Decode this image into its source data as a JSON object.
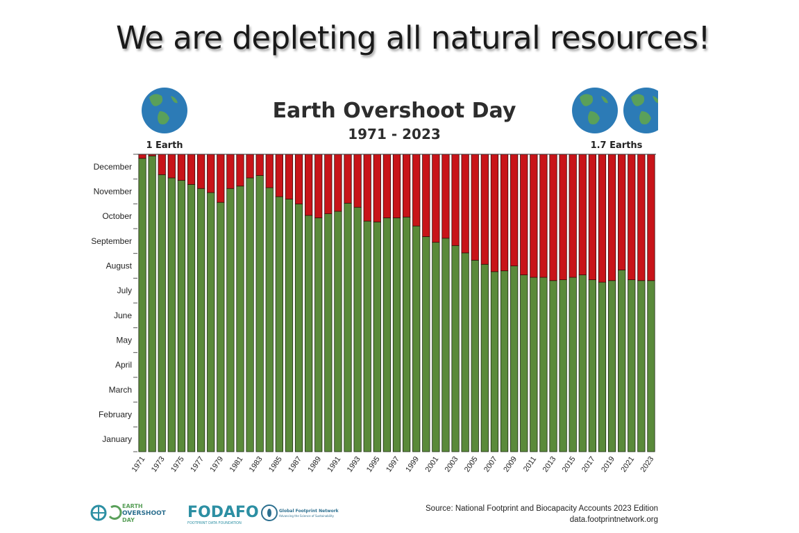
{
  "slide": {
    "title": "We are depleting all natural resources!"
  },
  "chart_data": {
    "type": "bar",
    "stacked": true,
    "title": "Earth Overshoot Day",
    "subtitle": "1971 - 2023",
    "left_note": "1 Earth",
    "right_note": "1.7 Earths",
    "y_ticks": [
      "January",
      "February",
      "March",
      "April",
      "May",
      "June",
      "July",
      "August",
      "September",
      "October",
      "November",
      "December"
    ],
    "ylim": [
      0,
      365
    ],
    "x_tick_labels": [
      "1971",
      "1973",
      "1975",
      "1977",
      "1979",
      "1981",
      "1983",
      "1985",
      "1987",
      "1989",
      "1991",
      "1993",
      "1995",
      "1997",
      "1999",
      "2001",
      "2003",
      "2005",
      "2007",
      "2009",
      "2011",
      "2013",
      "2015",
      "2017",
      "2019",
      "2021",
      "2023"
    ],
    "x": [
      1971,
      1972,
      1973,
      1974,
      1975,
      1976,
      1977,
      1978,
      1979,
      1980,
      1981,
      1982,
      1983,
      1984,
      1985,
      1986,
      1987,
      1988,
      1989,
      1990,
      1991,
      1992,
      1993,
      1994,
      1995,
      1996,
      1997,
      1998,
      1999,
      2000,
      2001,
      2002,
      2003,
      2004,
      2005,
      2006,
      2007,
      2008,
      2009,
      2010,
      2011,
      2012,
      2013,
      2014,
      2015,
      2016,
      2017,
      2018,
      2019,
      2020,
      2021,
      2022,
      2023
    ],
    "series": [
      {
        "name": "",
        "color": "#5a8a3a",
        "values": [
          360,
          363,
          340,
          336,
          333,
          328,
          323,
          318,
          306,
          323,
          326,
          336,
          339,
          324,
          313,
          310,
          304,
          290,
          287,
          292,
          295,
          305,
          300,
          283,
          282,
          287,
          287,
          288,
          277,
          264,
          257,
          262,
          253,
          244,
          235,
          230,
          221,
          222,
          228,
          217,
          214,
          214,
          210,
          211,
          214,
          217,
          211,
          208,
          210,
          223,
          211,
          210,
          210
        ]
      },
      {
        "name": "",
        "color": "#c81419",
        "values": [
          5,
          2,
          25,
          29,
          32,
          37,
          42,
          47,
          59,
          42,
          39,
          29,
          26,
          41,
          52,
          55,
          61,
          75,
          78,
          73,
          70,
          60,
          65,
          82,
          83,
          78,
          78,
          77,
          88,
          101,
          108,
          103,
          112,
          121,
          130,
          135,
          144,
          143,
          137,
          148,
          151,
          151,
          155,
          154,
          151,
          148,
          154,
          157,
          155,
          142,
          154,
          155,
          155
        ]
      }
    ]
  },
  "globe_colors": {
    "ocean": "#2c7bb6",
    "land": "#5aa05a"
  },
  "footer": {
    "source_line1": "Source: National Footprint and Biocapacity Accounts 2023 Edition",
    "source_line2": "data.footprintnetwork.org",
    "logo1_line1": "EARTH",
    "logo1_line2": "OVERSHOOT",
    "logo1_line3": "DAY",
    "logo2_name": "FODAFO",
    "logo2_sub": "FOOTPRINT DATA FOUNDATION",
    "logo3_name": "Global Footprint Network",
    "logo3_sub": "Advancing the Science of Sustainability"
  }
}
